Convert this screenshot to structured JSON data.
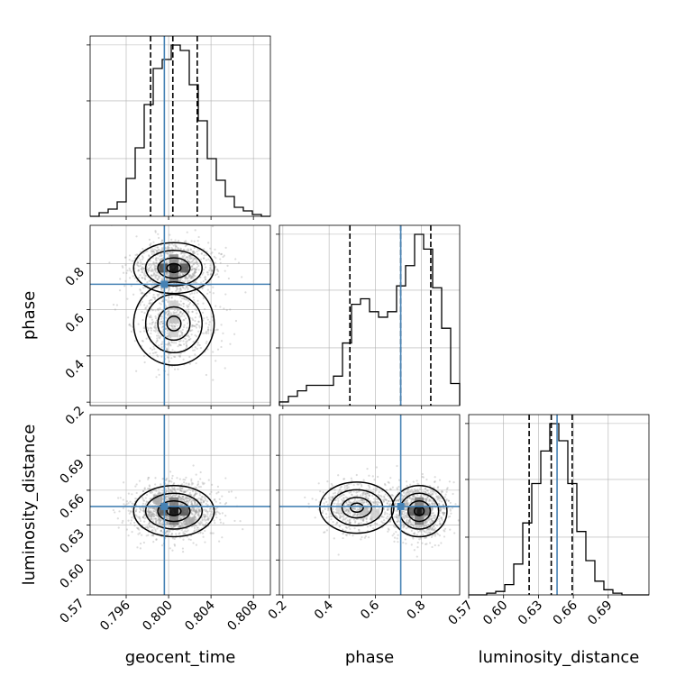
{
  "chart_data": {
    "type": "corner",
    "parameters": [
      "geocent_time",
      "phase",
      "luminosity_distance"
    ],
    "truths": {
      "geocent_time": 0.7996,
      "phase": 0.71,
      "luminosity_distance": 0.646
    },
    "colors": {
      "hist": "#000000",
      "truth": "#4682b4",
      "grid": "#b0b0b0",
      "quantile": "#000000"
    },
    "grid": true,
    "ranges": {
      "geocent_time": [
        0.7926,
        0.8096
      ],
      "phase": [
        0.185,
        0.965
      ],
      "luminosity_distance": [
        0.57,
        0.725
      ]
    },
    "ticks": {
      "geocent_time": {
        "values": [
          0.796,
          0.8,
          0.804,
          0.808
        ],
        "labels": [
          "0.796",
          "0.800",
          "0.804",
          "0.808"
        ]
      },
      "phase_x": {
        "values": [
          0.2,
          0.4,
          0.6,
          0.8
        ],
        "labels": [
          "0.2",
          "0.4",
          "0.6",
          "0.8"
        ]
      },
      "phase_y": {
        "values": [
          0.2,
          0.4,
          0.6,
          0.8
        ],
        "labels": [
          "0.2",
          "0.4",
          "0.6",
          "0.8"
        ]
      },
      "luminosity_distance_x": {
        "values": [
          0.57,
          0.6,
          0.63,
          0.66,
          0.69
        ],
        "labels": [
          "0.57",
          "0.60",
          "0.63",
          "0.66",
          "0.69"
        ]
      },
      "luminosity_distance_y": {
        "values": [
          0.57,
          0.6,
          0.63,
          0.66,
          0.69
        ],
        "labels": [
          "0.57",
          "0.60",
          "0.63",
          "0.66",
          "0.69"
        ]
      }
    },
    "quantiles": {
      "geocent_time": [
        0.7983,
        0.8004,
        0.8027
      ],
      "phase": [
        0.49,
        0.71,
        0.84
      ],
      "luminosity_distance": [
        0.622,
        0.641,
        0.659
      ]
    },
    "histograms": {
      "geocent_time": {
        "range": [
          0.7926,
          0.8096
        ],
        "counts": [
          0,
          2,
          4,
          8,
          21,
          38,
          62,
          82,
          87,
          95,
          92,
          73,
          53,
          32,
          20,
          11,
          5,
          3,
          1,
          0
        ]
      },
      "phase": {
        "range": [
          0.185,
          0.965
        ],
        "counts": [
          2,
          5,
          8,
          11,
          11,
          11,
          16,
          34,
          55,
          58,
          51,
          48,
          51,
          65,
          76,
          93,
          85,
          64,
          42,
          12
        ]
      },
      "luminosity_distance": {
        "range": [
          0.57,
          0.725
        ],
        "counts": [
          0,
          0,
          1,
          2,
          6,
          18,
          42,
          65,
          84,
          100,
          90,
          65,
          37,
          20,
          8,
          3,
          1,
          0,
          0,
          0
        ]
      }
    },
    "xlabels": [
      "geocent_time",
      "phase",
      "luminosity_distance"
    ],
    "ylabels": [
      "",
      "phase",
      "luminosity_distance"
    ]
  }
}
